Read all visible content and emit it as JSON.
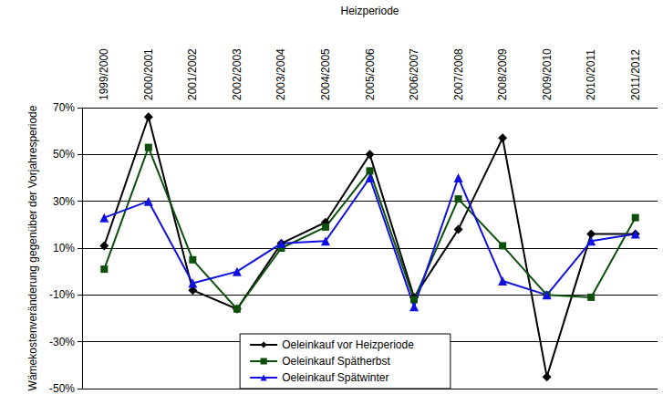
{
  "chart_data": {
    "type": "line",
    "x_label": "Heizperiode",
    "y_label": "Wämekostenveränderung gegenüber der Vorjahresperiode",
    "categories": [
      "1999/2000",
      "2000/2001",
      "2001/2002",
      "2002/2003",
      "2003/2004",
      "2004/2005",
      "2005/2006",
      "2006/2007",
      "2007/2008",
      "2008/2009",
      "2009/2010",
      "2010/2011",
      "2011/2012"
    ],
    "series": [
      {
        "name": "Oeleinkauf vor Heizperiode",
        "color": "#000000",
        "marker": "diamond",
        "values": [
          11,
          66,
          -8,
          -16,
          12,
          21,
          50,
          -11,
          18,
          57,
          -45,
          16,
          16
        ]
      },
      {
        "name": "Oeleinkauf Spätherbst",
        "color": "#0b4f0b",
        "marker": "square",
        "values": [
          1,
          53,
          5,
          -16,
          10,
          19,
          43,
          -12,
          31,
          11,
          -10,
          -11,
          23
        ]
      },
      {
        "name": "Oeleinkauf Spätwinter",
        "color": "#1010e0",
        "marker": "triangle",
        "values": [
          23,
          30,
          -5,
          0,
          12,
          13,
          40,
          -15,
          40,
          -4,
          -10,
          13,
          16
        ]
      }
    ],
    "ylim": [
      -50,
      70
    ],
    "yticks": [
      {
        "value": -50,
        "label": "-50%"
      },
      {
        "value": -30,
        "label": "-30%"
      },
      {
        "value": -10,
        "label": "-10%"
      },
      {
        "value": 10,
        "label": "10%"
      },
      {
        "value": 30,
        "label": "30%"
      },
      {
        "value": 50,
        "label": "50%"
      },
      {
        "value": 70,
        "label": "70%"
      }
    ],
    "grid": true,
    "legend": "bottom center"
  }
}
